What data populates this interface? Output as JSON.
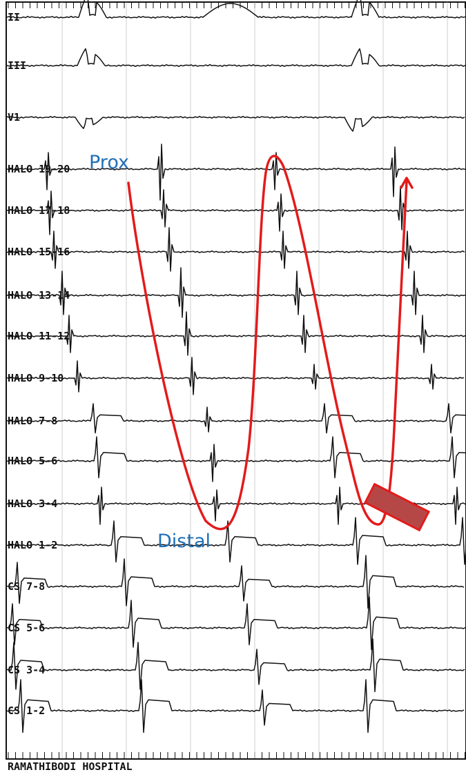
{
  "leads": [
    {
      "id": "II",
      "label": "II"
    },
    {
      "id": "III",
      "label": "III"
    },
    {
      "id": "V1",
      "label": "V1"
    },
    {
      "id": "HALO19-20",
      "label": "HALO 19-20"
    },
    {
      "id": "HALO17-18",
      "label": "HALO 17-18"
    },
    {
      "id": "HALO15-16",
      "label": "HALO 15-16"
    },
    {
      "id": "HALO13-14",
      "label": "HALO 13-14"
    },
    {
      "id": "HALO11-12",
      "label": "HALO 11-12"
    },
    {
      "id": "HALO9-10",
      "label": "HALO 9-10"
    },
    {
      "id": "HALO7-8",
      "label": "HALO 7-8"
    },
    {
      "id": "HALO5-6",
      "label": "HALO 5-6"
    },
    {
      "id": "HALO3-4",
      "label": "HALO 3-4"
    },
    {
      "id": "HALO1-2",
      "label": "HALO 1-2"
    },
    {
      "id": "CS7-8",
      "label": "CS 7-8"
    },
    {
      "id": "CS5-6",
      "label": "CS 5-6"
    },
    {
      "id": "CS3-4",
      "label": "CS 3-4"
    },
    {
      "id": "CS1-2",
      "label": "CS 1-2"
    }
  ],
  "annotations": {
    "prox": "Prox",
    "distal": "Distal"
  },
  "footer": "RAMATHIBODI HOSPITAL",
  "colors": {
    "annotation_text": "#1f6fb5",
    "activation_path": "#e31b1b",
    "block_fill": "#b64747",
    "trace": "#111111"
  }
}
